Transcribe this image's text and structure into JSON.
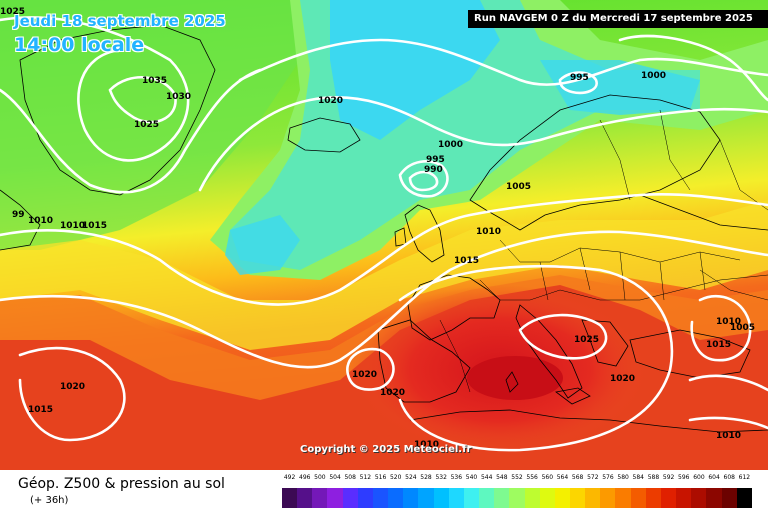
{
  "header": {
    "date": "Jeudi 18 septembre 2025",
    "time": "14:00 locale",
    "run": "Run NAVGEM 0 Z du Mercredi 17 septembre 2025"
  },
  "map": {
    "copyright": "Copyright © 2025 Meteociel.fr",
    "pressure_labels": [
      "1025",
      "1035",
      "1030",
      "1025",
      "1020",
      "995",
      "1000",
      "1000",
      "995",
      "990",
      "1005",
      "99",
      "1010",
      "1010",
      "1015",
      "1010",
      "1015",
      "1010",
      "1005",
      "1015",
      "1025",
      "1020",
      "1020",
      "1020",
      "1015",
      "1020",
      "1010",
      "1010"
    ]
  },
  "footer": {
    "title": "Géop. Z500 & pression au sol",
    "lead_time": "(+ 36h)"
  },
  "legend": {
    "ticks": [
      "492",
      "496",
      "500",
      "504",
      "508",
      "512",
      "516",
      "520",
      "524",
      "528",
      "532",
      "536",
      "540",
      "544",
      "548",
      "552",
      "556",
      "560",
      "564",
      "568",
      "572",
      "576",
      "580",
      "584",
      "588",
      "592",
      "596",
      "600",
      "604",
      "608",
      "612"
    ],
    "colors": [
      "#3c0a54",
      "#55108a",
      "#7418b8",
      "#8e1fe0",
      "#5a2dff",
      "#2e3cff",
      "#1a54ff",
      "#0a6cff",
      "#0088ff",
      "#00a4ff",
      "#00c0ff",
      "#1ed8ff",
      "#3ef0f0",
      "#5ef8c0",
      "#7efa90",
      "#9efc60",
      "#befc30",
      "#defa10",
      "#f4f000",
      "#fcd600",
      "#fcb800",
      "#fc9a00",
      "#fa7c00",
      "#f45c00",
      "#ec3c00",
      "#e02000",
      "#c81400",
      "#ac0c00",
      "#8c0600",
      "#6c0200",
      "#000000"
    ]
  }
}
